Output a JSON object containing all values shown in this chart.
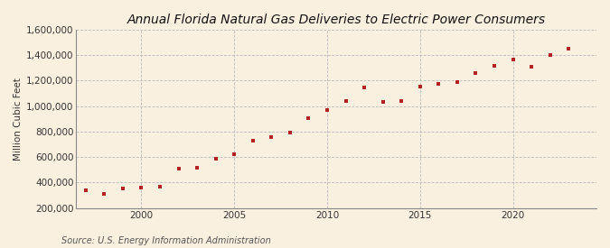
{
  "title": "Annual Florida Natural Gas Deliveries to Electric Power Consumers",
  "ylabel": "Million Cubic Feet",
  "source": "Source: U.S. Energy Information Administration",
  "background_color": "#faf0e0",
  "plot_background_color": "#faf0e0",
  "marker_color": "#b22222",
  "years": [
    1997,
    1998,
    1999,
    2000,
    2001,
    2002,
    2003,
    2004,
    2005,
    2006,
    2007,
    2008,
    2009,
    2010,
    2011,
    2012,
    2013,
    2014,
    2015,
    2016,
    2017,
    2018,
    2019,
    2020,
    2021,
    2022,
    2023
  ],
  "values": [
    340000,
    310000,
    355000,
    360000,
    370000,
    510000,
    520000,
    590000,
    620000,
    730000,
    755000,
    790000,
    905000,
    970000,
    1040000,
    1145000,
    1030000,
    1040000,
    1155000,
    1175000,
    1190000,
    1260000,
    1320000,
    1365000,
    1310000,
    1400000,
    1450000
  ],
  "ylim": [
    200000,
    1600000
  ],
  "yticks": [
    200000,
    400000,
    600000,
    800000,
    1000000,
    1200000,
    1400000,
    1600000
  ],
  "xticks": [
    2000,
    2005,
    2010,
    2015,
    2020
  ],
  "xlim": [
    1996.5,
    2024.5
  ],
  "grid_color": "#bbbbbb",
  "title_fontsize": 10,
  "label_fontsize": 7.5,
  "tick_fontsize": 7.5,
  "source_fontsize": 7
}
